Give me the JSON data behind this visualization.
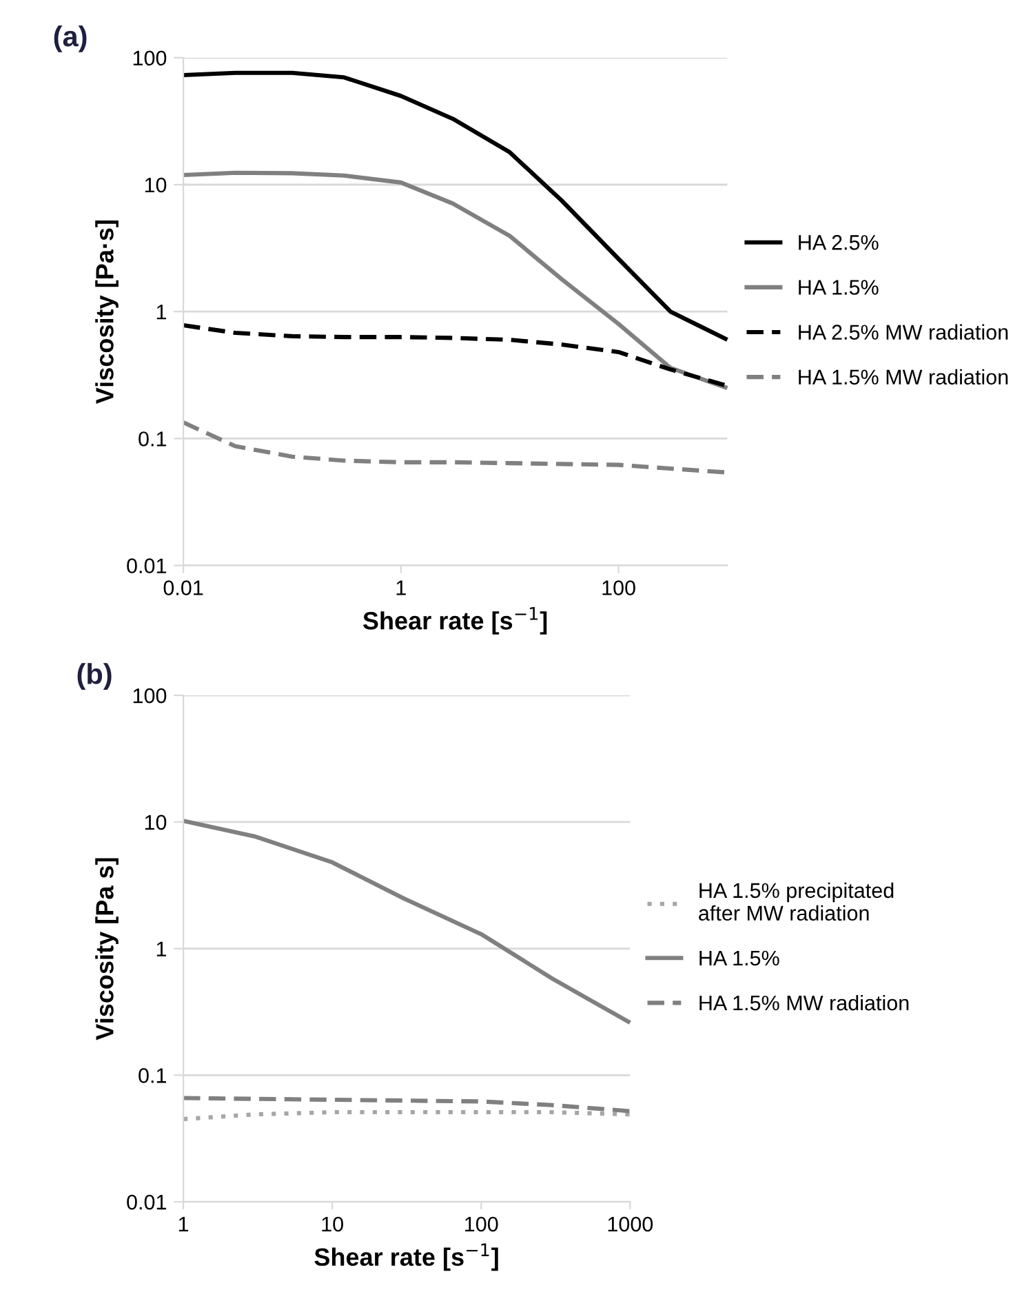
{
  "chart_data": [
    {
      "type": "line",
      "title": "(a)",
      "xlabel": "Shear rate [s$^{−1}$]",
      "ylabel": "Viscosity [Pa·s]",
      "log": "xy",
      "xlim": [
        0.01,
        1000
      ],
      "xticks": [
        0.01,
        1,
        100
      ],
      "ylim": [
        0.01,
        100
      ],
      "yticks": [
        0.01,
        0.1,
        1,
        10,
        100
      ],
      "grid": "y",
      "legend": "right",
      "x": [
        0.01,
        0.03,
        0.1,
        0.3,
        1,
        3,
        10,
        30,
        100,
        300,
        1000
      ],
      "series": [
        {
          "name": "HA 2.5%",
          "color": "#000000",
          "line_style": "solid",
          "values": [
            73,
            76,
            76,
            70,
            50,
            33,
            18,
            7.5,
            2.6,
            1.0,
            0.6
          ]
        },
        {
          "name": "HA 1.5%",
          "color": "#808080",
          "line_style": "solid",
          "values": [
            11.9,
            12.4,
            12.3,
            11.8,
            10.4,
            7.1,
            3.95,
            1.8,
            0.8,
            0.36,
            0.25
          ]
        },
        {
          "name": "HA 2.5% MW radiation",
          "color": "#000000",
          "line_style": "dashed",
          "values": [
            0.78,
            0.68,
            0.64,
            0.63,
            0.63,
            0.62,
            0.6,
            0.55,
            0.48,
            0.35,
            0.26
          ]
        },
        {
          "name": "HA 1.5% MW radiation",
          "color": "#808080",
          "line_style": "dashed",
          "values": [
            0.134,
            0.087,
            0.072,
            0.067,
            0.065,
            0.065,
            0.064,
            0.063,
            0.062,
            0.058,
            0.054
          ]
        }
      ]
    },
    {
      "type": "line",
      "title": "(b)",
      "xlabel": "Shear rate [s$^{−1}$]",
      "ylabel": "Viscosity [Pa s]",
      "log": "xy",
      "xlim": [
        1,
        1000
      ],
      "xticks": [
        1,
        10,
        100,
        1000
      ],
      "ylim": [
        0.01,
        100
      ],
      "yticks": [
        0.01,
        0.1,
        1,
        10,
        100
      ],
      "grid": "y",
      "legend": "right",
      "x": [
        1,
        3,
        10,
        30,
        100,
        300,
        1000
      ],
      "series": [
        {
          "name": "HA 1.5% precipitated after MW radiation",
          "color": "#a6a6a6",
          "line_style": "dotted",
          "values": [
            0.045,
            0.049,
            0.051,
            0.051,
            0.051,
            0.051,
            0.049
          ]
        },
        {
          "name": "HA 1.5%",
          "color": "#808080",
          "line_style": "solid",
          "values": [
            10.2,
            7.7,
            4.8,
            2.5,
            1.3,
            0.58,
            0.26
          ]
        },
        {
          "name": "HA 1.5% MW radiation",
          "color": "#808080",
          "line_style": "dashed",
          "values": [
            0.066,
            0.065,
            0.064,
            0.063,
            0.062,
            0.058,
            0.052
          ]
        }
      ]
    }
  ]
}
